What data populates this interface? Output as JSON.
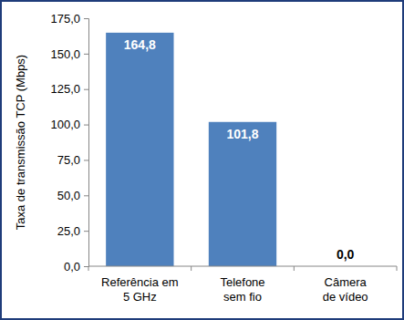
{
  "chart_data": {
    "type": "bar",
    "y_label": "Taxa de transmissão TCP (Mbps)",
    "categories": [
      "Referência em\n5 GHz",
      "Telefone\nsem fio",
      "Câmera\nde vídeo"
    ],
    "values": [
      164.8,
      101.8,
      0.0
    ],
    "value_labels": [
      "164,8",
      "101,8",
      "0,0"
    ],
    "data_labels": true,
    "color": "#4f81bd",
    "ylim": [
      0,
      175
    ],
    "yticks": [
      {
        "value": 0,
        "label": "0,0"
      },
      {
        "value": 25,
        "label": "25,0"
      },
      {
        "value": 50,
        "label": "50,0"
      },
      {
        "value": 75,
        "label": "75,0"
      },
      {
        "value": 100,
        "label": "100,0"
      },
      {
        "value": 125,
        "label": "125,0"
      },
      {
        "value": 150,
        "label": "150,0"
      },
      {
        "value": 175,
        "label": "175,0"
      }
    ],
    "grid": false
  }
}
